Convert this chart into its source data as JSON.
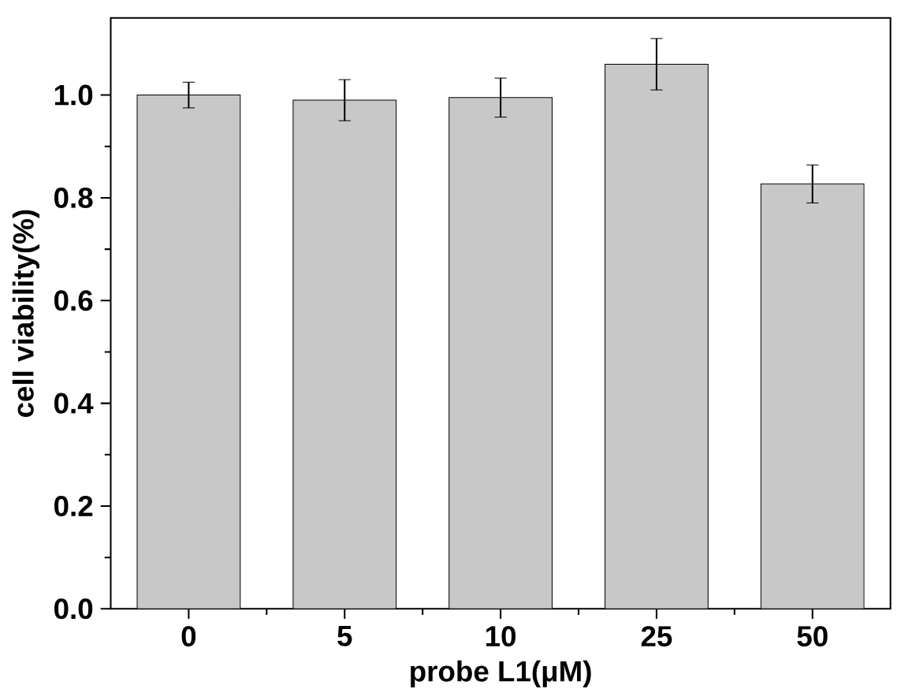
{
  "chart_data": {
    "type": "bar",
    "xlabel": "probe L1(μM)",
    "ylabel": "cell viability(%)",
    "categories": [
      "0",
      "5",
      "10",
      "25",
      "50"
    ],
    "values": [
      1.0,
      0.99,
      0.995,
      1.06,
      0.827
    ],
    "errors": [
      0.025,
      0.04,
      0.038,
      0.05,
      0.037
    ],
    "color": "#c8c8c8",
    "ylim": [
      0,
      1.15
    ],
    "yticks": [
      {
        "value": 0,
        "label": "0.0"
      },
      0.2,
      0.4,
      0.6,
      0.8,
      {
        "value": 1,
        "label": "1.0"
      }
    ],
    "grid": false
  }
}
